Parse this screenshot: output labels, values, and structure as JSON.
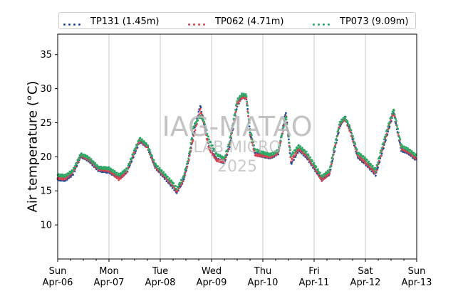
{
  "chart_data": {
    "type": "scatter",
    "ylabel": "Air temperature (°C)",
    "xlabel": "",
    "ylim": [
      5,
      38
    ],
    "yticks": [
      10,
      15,
      20,
      25,
      30,
      35
    ],
    "x_days": [
      "Apr-06",
      "Apr-07",
      "Apr-08",
      "Apr-09",
      "Apr-10",
      "Apr-11",
      "Apr-12",
      "Apr-13"
    ],
    "x_weekdays": [
      "Sun",
      "Mon",
      "Tue",
      "Wed",
      "Thu",
      "Fri",
      "Sat",
      "Sun"
    ],
    "grid": "vertical",
    "legend_position": "top",
    "series": [
      {
        "name": "TP131 (1.45m)",
        "color": "#1f4e9c",
        "points": [
          [
            0,
            16.7
          ],
          [
            0.15,
            16.6
          ],
          [
            0.3,
            17.5
          ],
          [
            0.45,
            20.1
          ],
          [
            0.6,
            19.5
          ],
          [
            0.8,
            18.0
          ],
          [
            1.0,
            17.8
          ],
          [
            1.2,
            16.9
          ],
          [
            1.35,
            17.8
          ],
          [
            1.5,
            20.5
          ],
          [
            1.6,
            22.3
          ],
          [
            1.75,
            21.5
          ],
          [
            1.9,
            18.5
          ],
          [
            2.1,
            16.8
          ],
          [
            2.25,
            15.5
          ],
          [
            2.32,
            14.8
          ],
          [
            2.45,
            16.5
          ],
          [
            2.55,
            19.5
          ],
          [
            2.65,
            23.5
          ],
          [
            2.78,
            27.5
          ],
          [
            2.85,
            25.0
          ],
          [
            2.95,
            21.5
          ],
          [
            3.1,
            19.6
          ],
          [
            3.25,
            19.2
          ],
          [
            3.35,
            21.5
          ],
          [
            3.5,
            27.5
          ],
          [
            3.6,
            29.0
          ],
          [
            3.68,
            28.5
          ],
          [
            3.75,
            23.5
          ],
          [
            3.85,
            20.5
          ],
          [
            4.0,
            20.1
          ],
          [
            4.15,
            19.9
          ],
          [
            4.3,
            20.5
          ],
          [
            4.45,
            26.6
          ],
          [
            4.55,
            19.0
          ],
          [
            4.7,
            21.0
          ],
          [
            4.85,
            20.0
          ],
          [
            5.0,
            18.3
          ],
          [
            5.15,
            16.7
          ],
          [
            5.3,
            17.5
          ],
          [
            5.4,
            21.0
          ],
          [
            5.5,
            24.5
          ],
          [
            5.6,
            25.9
          ],
          [
            5.7,
            24.0
          ],
          [
            5.85,
            20.0
          ],
          [
            6.0,
            19.0
          ],
          [
            6.2,
            17.4
          ],
          [
            6.3,
            20.0
          ],
          [
            6.45,
            24.0
          ],
          [
            6.55,
            26.5
          ],
          [
            6.7,
            21.0
          ],
          [
            6.85,
            20.5
          ],
          [
            7.0,
            19.5
          ]
        ]
      },
      {
        "name": "TP062 (4.71m)",
        "color": "#d64550",
        "points": [
          [
            0,
            16.9
          ],
          [
            0.15,
            16.8
          ],
          [
            0.3,
            17.8
          ],
          [
            0.45,
            20.2
          ],
          [
            0.6,
            19.7
          ],
          [
            0.8,
            18.2
          ],
          [
            1.0,
            18.0
          ],
          [
            1.2,
            16.7
          ],
          [
            1.35,
            17.9
          ],
          [
            1.5,
            20.8
          ],
          [
            1.6,
            22.5
          ],
          [
            1.75,
            21.4
          ],
          [
            1.9,
            18.6
          ],
          [
            2.1,
            17.0
          ],
          [
            2.25,
            15.8
          ],
          [
            2.32,
            14.9
          ],
          [
            2.45,
            16.6
          ],
          [
            2.55,
            19.3
          ],
          [
            2.65,
            23.0
          ],
          [
            2.78,
            27.0
          ],
          [
            2.85,
            24.8
          ],
          [
            2.95,
            21.2
          ],
          [
            3.1,
            19.5
          ],
          [
            3.25,
            19.3
          ],
          [
            3.35,
            21.8
          ],
          [
            3.5,
            27.8
          ],
          [
            3.6,
            28.8
          ],
          [
            3.68,
            28.6
          ],
          [
            3.75,
            23.3
          ],
          [
            3.85,
            20.3
          ],
          [
            4.0,
            20.2
          ],
          [
            4.15,
            20.0
          ],
          [
            4.3,
            20.6
          ],
          [
            4.45,
            25.8
          ],
          [
            4.55,
            19.4
          ],
          [
            4.7,
            21.2
          ],
          [
            4.85,
            20.2
          ],
          [
            5.0,
            18.5
          ],
          [
            5.15,
            16.6
          ],
          [
            5.3,
            17.6
          ],
          [
            5.4,
            21.3
          ],
          [
            5.5,
            24.8
          ],
          [
            5.6,
            25.6
          ],
          [
            5.7,
            23.8
          ],
          [
            5.85,
            20.2
          ],
          [
            6.0,
            19.2
          ],
          [
            6.2,
            17.6
          ],
          [
            6.3,
            20.3
          ],
          [
            6.45,
            24.3
          ],
          [
            6.55,
            26.8
          ],
          [
            6.7,
            21.2
          ],
          [
            6.85,
            20.7
          ],
          [
            7.0,
            19.7
          ]
        ]
      },
      {
        "name": "TP073 (9.09m)",
        "color": "#2ea866",
        "points": [
          [
            0,
            17.3
          ],
          [
            0.15,
            17.2
          ],
          [
            0.3,
            18.0
          ],
          [
            0.45,
            20.4
          ],
          [
            0.6,
            19.9
          ],
          [
            0.8,
            18.4
          ],
          [
            1.0,
            18.3
          ],
          [
            1.2,
            17.3
          ],
          [
            1.35,
            18.2
          ],
          [
            1.5,
            21.0
          ],
          [
            1.6,
            22.7
          ],
          [
            1.75,
            21.7
          ],
          [
            1.9,
            18.9
          ],
          [
            2.1,
            17.3
          ],
          [
            2.25,
            16.1
          ],
          [
            2.32,
            15.3
          ],
          [
            2.45,
            17.0
          ],
          [
            2.55,
            19.8
          ],
          [
            2.65,
            24.5
          ],
          [
            2.78,
            26.0
          ],
          [
            2.85,
            25.3
          ],
          [
            2.95,
            22.5
          ],
          [
            3.1,
            20.3
          ],
          [
            3.25,
            19.8
          ],
          [
            3.35,
            22.2
          ],
          [
            3.5,
            28.3
          ],
          [
            3.6,
            29.2
          ],
          [
            3.68,
            29.0
          ],
          [
            3.75,
            24.0
          ],
          [
            3.85,
            21.0
          ],
          [
            4.0,
            20.6
          ],
          [
            4.15,
            20.3
          ],
          [
            4.3,
            20.9
          ],
          [
            4.45,
            26.0
          ],
          [
            4.55,
            20.2
          ],
          [
            4.7,
            21.6
          ],
          [
            4.85,
            20.6
          ],
          [
            5.0,
            18.9
          ],
          [
            5.15,
            17.1
          ],
          [
            5.3,
            18.0
          ],
          [
            5.4,
            21.6
          ],
          [
            5.5,
            25.0
          ],
          [
            5.6,
            25.8
          ],
          [
            5.7,
            24.3
          ],
          [
            5.85,
            20.6
          ],
          [
            6.0,
            19.7
          ],
          [
            6.2,
            18.0
          ],
          [
            6.3,
            20.8
          ],
          [
            6.45,
            24.7
          ],
          [
            6.55,
            27.0
          ],
          [
            6.7,
            21.6
          ],
          [
            6.85,
            21.0
          ],
          [
            7.0,
            20.1
          ]
        ]
      }
    ]
  },
  "watermark": {
    "line1": "IAG-MATAO",
    "line2": "LAB MICRO",
    "line3": "2025"
  }
}
